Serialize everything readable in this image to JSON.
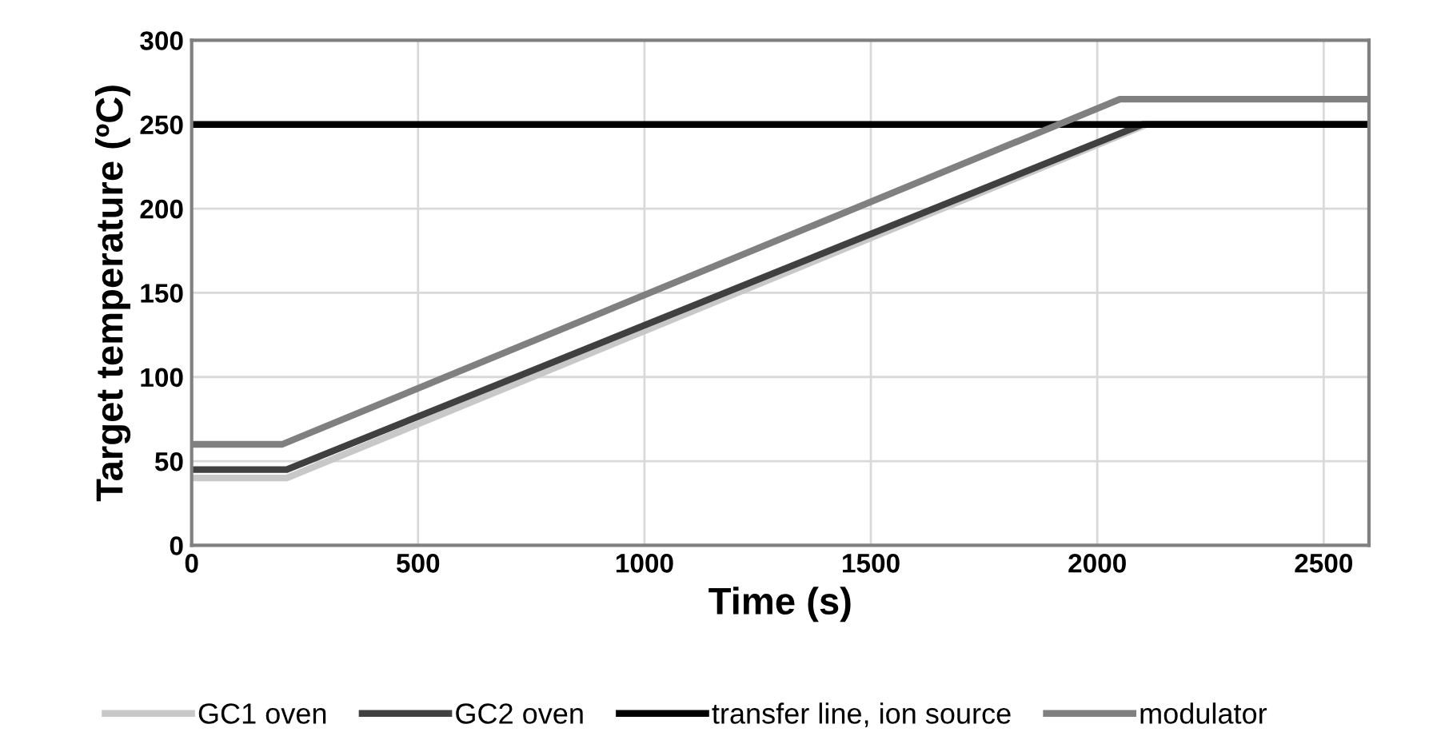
{
  "chart_data": {
    "type": "line",
    "xlabel": "Time (s)",
    "ylabel": "Target temperature (ºC)",
    "series": [
      {
        "name": "GC1 oven",
        "color": "#c8c8c8",
        "x": [
          0,
          210,
          2110,
          2600
        ],
        "values": [
          40,
          40,
          250,
          250
        ]
      },
      {
        "name": "GC2 oven",
        "color": "#404040",
        "x": [
          0,
          210,
          2100,
          2600
        ],
        "values": [
          45,
          45,
          250,
          250
        ]
      },
      {
        "name": "transfer line, ion source",
        "color": "#000000",
        "x": [
          0,
          2600
        ],
        "values": [
          250,
          250
        ]
      },
      {
        "name": "modulator",
        "color": "#808080",
        "x": [
          0,
          200,
          2050,
          2600
        ],
        "values": [
          60,
          60,
          265,
          265
        ]
      }
    ],
    "xlim": [
      0,
      2600
    ],
    "xticks": [
      0,
      500,
      1000,
      1500,
      2000,
      2500
    ],
    "ylim": [
      0,
      300
    ],
    "yticks": [
      0,
      50,
      100,
      150,
      200,
      250,
      300
    ],
    "grid": true,
    "legend": "bottom",
    "marker": "none",
    "line_style": "solid"
  }
}
